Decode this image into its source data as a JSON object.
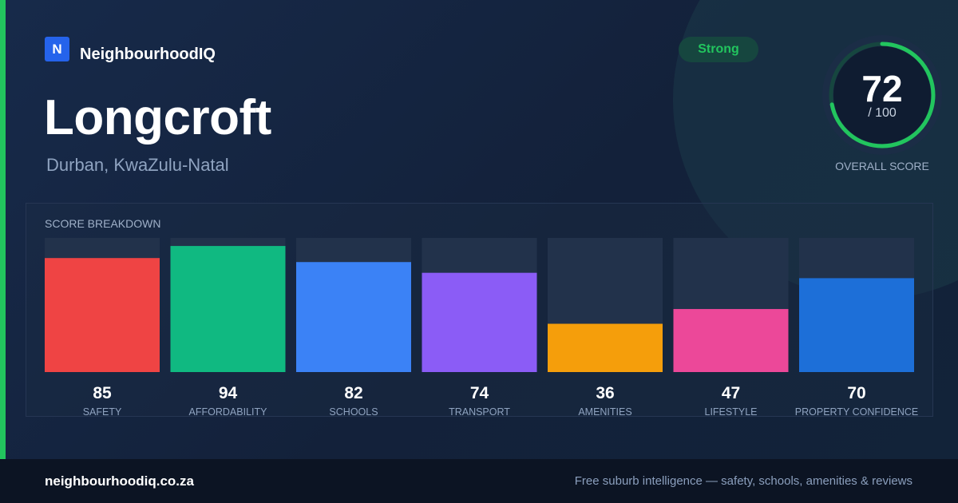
{
  "brand": {
    "logo_letter": "N",
    "name": "NeighbourhoodIQ"
  },
  "suburb": {
    "name": "Longcroft",
    "location": "Durban, KwaZulu-Natal"
  },
  "rating_badge": "Strong",
  "overall": {
    "score": "72",
    "max_label": "/ 100",
    "caption": "OVERALL SCORE",
    "fraction": 0.72,
    "color": "#22c55e"
  },
  "breakdown_title": "SCORE BREAKDOWN",
  "chart_data": {
    "type": "bar",
    "title": "SCORE BREAKDOWN",
    "categories": [
      "SAFETY",
      "AFFORDABILITY",
      "SCHOOLS",
      "TRANSPORT",
      "AMENITIES",
      "LIFESTYLE",
      "PROPERTY CONFIDENCE"
    ],
    "values": [
      85,
      94,
      82,
      74,
      36,
      47,
      70
    ],
    "colors": [
      "#ef4444",
      "#10b981",
      "#3b82f6",
      "#8b5cf6",
      "#f59e0b",
      "#ec4899",
      "#1d6fd8"
    ],
    "ylim": [
      0,
      100
    ],
    "grid": false,
    "legend": "none"
  },
  "footer": {
    "url": "neighbourhoodiq.co.za",
    "tagline": "Free suburb intelligence — safety, schools, amenities & reviews"
  }
}
